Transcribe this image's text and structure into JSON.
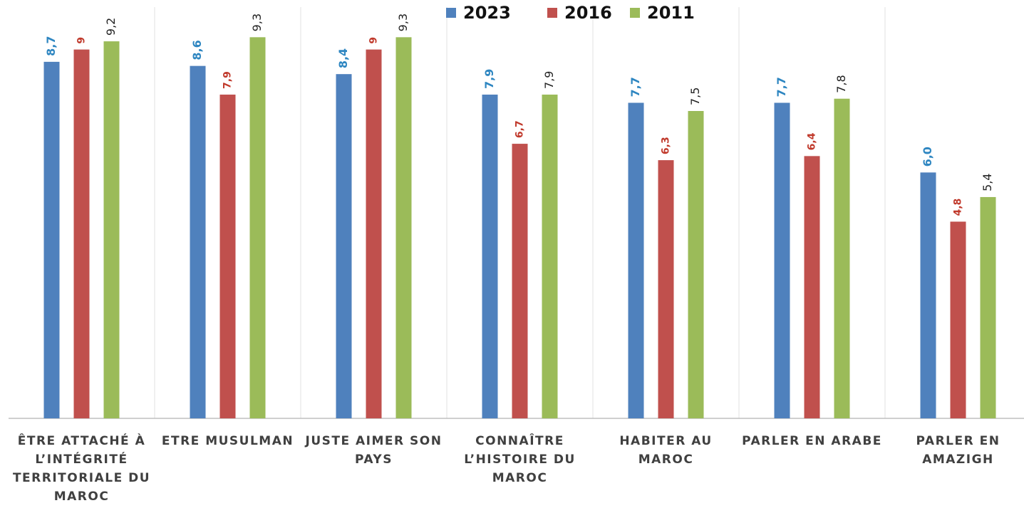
{
  "chart_data": {
    "type": "bar",
    "categories": [
      [
        "ÊTRE ATTACHÉ À",
        "L’INTÉGRITÉ",
        "TERRITORIALE DU",
        "MAROC"
      ],
      [
        "ETRE MUSULMAN"
      ],
      [
        "JUSTE AIMER SON",
        "PAYS"
      ],
      [
        "CONNAÎTRE",
        "L’HISTOIRE DU",
        "MAROC"
      ],
      [
        "HABITER AU",
        "MAROC"
      ],
      [
        "PARLER EN ARABE"
      ],
      [
        "PARLER EN",
        "AMAZIGH"
      ]
    ],
    "series": [
      {
        "name": "2023",
        "color": "#4f81bd",
        "values": [
          8.7,
          8.6,
          8.4,
          7.9,
          7.7,
          7.7,
          6.0
        ],
        "value_labels": [
          "8,7",
          "8,6",
          "8,4",
          "7,9",
          "7,7",
          "7,7",
          "6,0"
        ]
      },
      {
        "name": "2016",
        "color": "#c0504d",
        "values": [
          9,
          7.9,
          9,
          6.7,
          6.3,
          6.4,
          4.8
        ],
        "value_labels": [
          "9",
          "7,9",
          "9",
          "6,7",
          "6,3",
          "6,4",
          "4,8"
        ]
      },
      {
        "name": "2011",
        "color": "#9bbb59",
        "values": [
          9.2,
          9.3,
          9.3,
          7.9,
          7.5,
          7.8,
          5.4
        ],
        "value_labels": [
          "9,2",
          "9,3",
          "9,3",
          "7,9",
          "7,5",
          "7,8",
          "5,4"
        ]
      }
    ],
    "ylim": [
      0,
      10
    ]
  }
}
